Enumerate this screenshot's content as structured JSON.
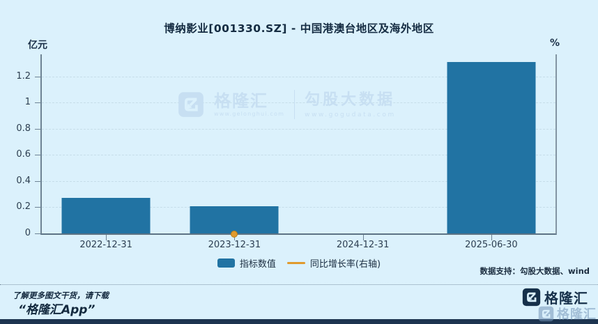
{
  "title": "博纳影业[001330.SZ] - 中国港澳台地区及海外地区",
  "units": {
    "left": "亿元",
    "right": "%"
  },
  "chart_data": {
    "type": "bar",
    "title": "博纳影业[001330.SZ] - 中国港澳台地区及海外地区",
    "categories": [
      "2022-12-31",
      "2023-12-31",
      "2024-12-31",
      "2025-06-30"
    ],
    "series": [
      {
        "name": "指标数值",
        "type": "bar",
        "axis": "left",
        "color": "#2173a3",
        "values": [
          0.27,
          0.21,
          null,
          1.31
        ]
      },
      {
        "name": "同比增长率(右轴)",
        "type": "line",
        "axis": "right",
        "color": "#e09a2d",
        "values": [
          null,
          0,
          null,
          null
        ],
        "note": "single visible marker at 2023-12-31 sitting on the baseline; right axis shows no tick labels"
      }
    ],
    "ylabel_left": "亿元",
    "ylabel_right": "%",
    "y_ticks_left": [
      0,
      0.2,
      0.4,
      0.6,
      0.8,
      1,
      1.2
    ],
    "ylim_left": [
      0,
      1.37
    ],
    "grid": true,
    "legend_position": "bottom"
  },
  "legend": {
    "items": [
      {
        "label": "指标数值",
        "swatch": "bar",
        "color": "#2173a3"
      },
      {
        "label": "同比增长率(右轴)",
        "swatch": "line",
        "color": "#e09a2d"
      }
    ]
  },
  "watermark": {
    "brand": "格隆汇",
    "brand_url": "www.gelonghui.com",
    "partner": "勾股大数据",
    "partner_url": "www.gogudata.com"
  },
  "data_support": "数据支持：勾股大数据、wind",
  "footer": {
    "line1": "了解更多图文干货，请下载",
    "line2": "“格隆汇App”",
    "logo_text": "格隆汇"
  },
  "colors": {
    "background": "#dbf1fc",
    "bar": "#2173a3",
    "growth_line": "#e09a2d",
    "text": "#152c42",
    "axis": "#6e8394",
    "gridline": "#c6dde9",
    "watermark": "#c7dff2",
    "bottom_strip": "#1d3450"
  }
}
